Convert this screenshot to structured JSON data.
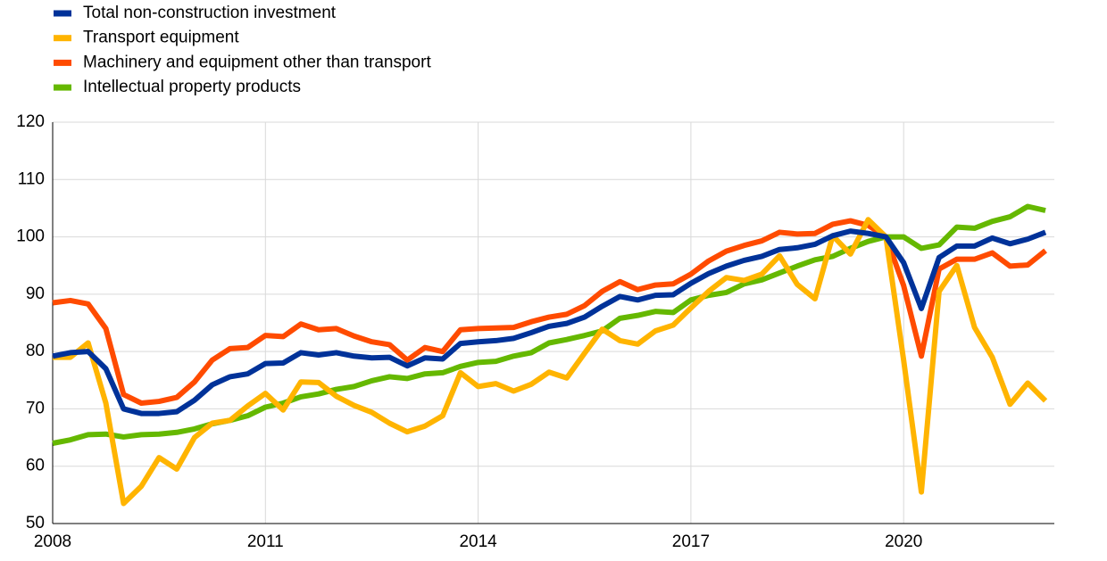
{
  "chart_data": {
    "type": "line",
    "x": [
      2008,
      2008.25,
      2008.5,
      2008.75,
      2009,
      2009.25,
      2009.5,
      2009.75,
      2010,
      2010.25,
      2010.5,
      2010.75,
      2011,
      2011.25,
      2011.5,
      2011.75,
      2012,
      2012.25,
      2012.5,
      2012.75,
      2013,
      2013.25,
      2013.5,
      2013.75,
      2014,
      2014.25,
      2014.5,
      2014.75,
      2015,
      2015.25,
      2015.5,
      2015.75,
      2016,
      2016.25,
      2016.5,
      2016.75,
      2017,
      2017.25,
      2017.5,
      2017.75,
      2018,
      2018.25,
      2018.5,
      2018.75,
      2019,
      2019.25,
      2019.5,
      2019.75,
      2020,
      2020.25,
      2020.5,
      2020.75,
      2021,
      2021.25,
      2021.5,
      2021.75,
      2022
    ],
    "series": [
      {
        "name": "Total non-construction investment",
        "color": "#003299",
        "values": [
          79.2,
          79.8,
          80,
          77,
          70,
          69.2,
          69.2,
          69.5,
          71.5,
          74.2,
          75.6,
          76.1,
          77.9,
          78,
          79.8,
          79.4,
          79.8,
          79.2,
          78.9,
          79,
          77.5,
          78.9,
          78.7,
          81.4,
          81.7,
          81.9,
          82.3,
          83.3,
          84.4,
          84.9,
          86,
          87.9,
          89.6,
          89,
          89.8,
          89.9,
          91.9,
          93.6,
          94.9,
          95.9,
          96.6,
          97.8,
          98.1,
          98.7,
          100.2,
          101,
          100.6,
          100,
          95.5,
          87.5,
          96.4,
          98.4,
          98.4,
          99.8,
          98.8,
          99.6,
          100.8
        ]
      },
      {
        "name": "Transport equipment",
        "color": "#ffb400",
        "values": [
          79,
          79,
          81.5,
          71,
          53.5,
          56.5,
          61.5,
          59.5,
          65,
          67.5,
          68,
          70.5,
          72.7,
          69.8,
          74.7,
          74.6,
          72.2,
          70.6,
          69.4,
          67.5,
          66,
          67,
          68.8,
          76.3,
          73.9,
          74.4,
          73.1,
          74.3,
          76.4,
          75.4,
          79.7,
          83.9,
          81.9,
          81.3,
          83.6,
          84.6,
          87.6,
          90.5,
          92.9,
          92.4,
          93.5,
          96.7,
          91.7,
          89.2,
          100.2,
          97,
          103,
          100,
          78.5,
          55.5,
          90.5,
          95,
          84.2,
          79,
          70.8,
          74.5,
          71.4
        ]
      },
      {
        "name": "Machinery and equipment other than transport",
        "color": "#ff4b00",
        "values": [
          88.5,
          88.9,
          88.3,
          84,
          72.5,
          71,
          71.3,
          72,
          74.7,
          78.5,
          80.5,
          80.7,
          82.8,
          82.6,
          84.8,
          83.8,
          84,
          82.7,
          81.7,
          81.2,
          78.5,
          80.7,
          80,
          83.8,
          84,
          84.1,
          84.2,
          85.2,
          86,
          86.5,
          88,
          90.5,
          92.2,
          90.8,
          91.6,
          91.8,
          93.5,
          95.8,
          97.5,
          98.5,
          99.3,
          100.8,
          100.5,
          100.6,
          102.2,
          102.8,
          102,
          100,
          91.5,
          79.2,
          94.4,
          96.1,
          96.1,
          97.2,
          94.9,
          95.1,
          97.6
        ]
      },
      {
        "name": "Intellectual property products",
        "color": "#65b800",
        "values": [
          64,
          64.6,
          65.5,
          65.6,
          65.1,
          65.5,
          65.6,
          65.9,
          66.5,
          67.4,
          68,
          68.8,
          70.3,
          71,
          72.1,
          72.6,
          73.4,
          73.9,
          74.9,
          75.6,
          75.3,
          76.1,
          76.3,
          77.4,
          78.1,
          78.3,
          79.2,
          79.8,
          81.5,
          82.1,
          82.8,
          83.6,
          85.8,
          86.3,
          87,
          86.8,
          89,
          89.8,
          90.3,
          91.8,
          92.5,
          93.7,
          94.9,
          96,
          96.6,
          98,
          99.2,
          100,
          100,
          98,
          98.6,
          101.7,
          101.5,
          102.7,
          103.5,
          105.3,
          104.6
        ]
      }
    ],
    "xlim": [
      2008,
      2022.125
    ],
    "xticks": [
      2008,
      2011,
      2014,
      2017,
      2020
    ],
    "ylim": [
      50,
      120
    ],
    "yticks": [
      50,
      60,
      70,
      80,
      90,
      100,
      110,
      120
    ],
    "grid": true,
    "legend": "top-left"
  }
}
